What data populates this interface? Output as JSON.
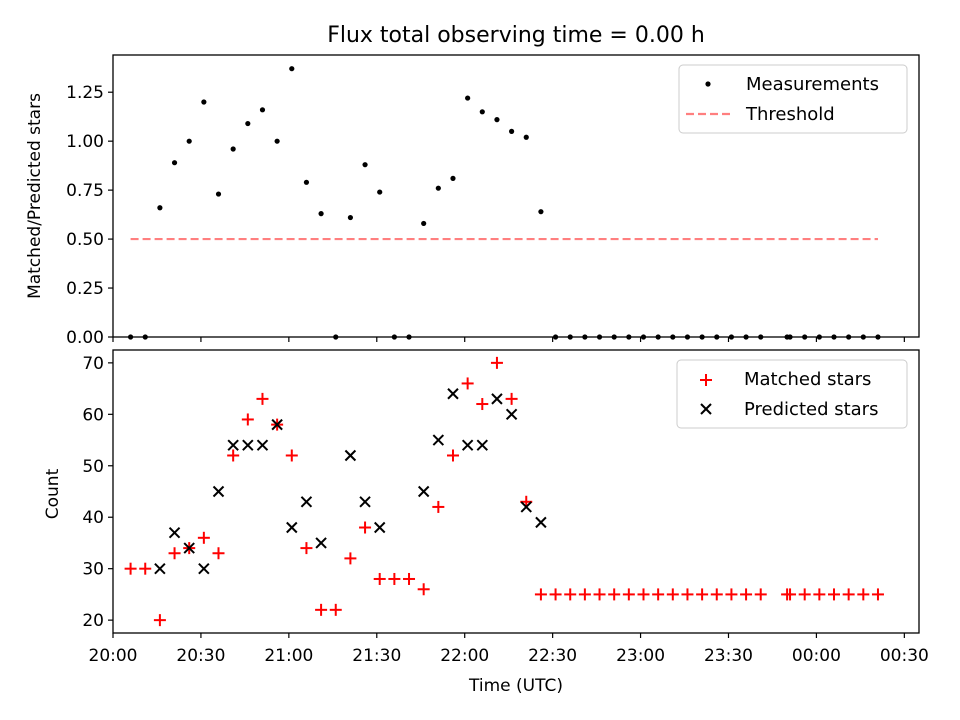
{
  "chart_data": [
    {
      "type": "scatter",
      "title": "Flux total observing time = 0.00 h",
      "ylabel": "Matched/Predicted stars",
      "xlabel": "",
      "xlim": [
        "20:00",
        "00:35"
      ],
      "ylim": [
        0,
        1.44
      ],
      "yticks": [
        "0.00",
        "0.25",
        "0.50",
        "0.75",
        "1.00",
        "1.25"
      ],
      "legend": [
        "Measurements",
        "Threshold"
      ],
      "legend_position": "upper right",
      "series": [
        {
          "name": "Measurements",
          "marker": "dot",
          "color": "#000000",
          "x": [
            "20:06",
            "20:11",
            "20:16",
            "20:21",
            "20:26",
            "20:31",
            "20:36",
            "20:41",
            "20:46",
            "20:51",
            "20:56",
            "21:01",
            "21:06",
            "21:11",
            "21:16",
            "21:21",
            "21:26",
            "21:31",
            "21:36",
            "21:41",
            "21:46",
            "21:51",
            "21:56",
            "22:01",
            "22:06",
            "22:11",
            "22:16",
            "22:21",
            "22:26",
            "22:31",
            "22:36",
            "22:41",
            "22:46",
            "22:51",
            "22:56",
            "23:01",
            "23:06",
            "23:11",
            "23:16",
            "23:21",
            "23:26",
            "23:31",
            "23:36",
            "23:41",
            "23:50",
            "23:51",
            "23:56",
            "00:01",
            "00:06",
            "00:11",
            "00:16",
            "00:21"
          ],
          "y": [
            0,
            0,
            0.66,
            0.89,
            1.0,
            1.2,
            0.73,
            0.96,
            1.09,
            1.16,
            1.0,
            1.37,
            0.79,
            0.63,
            0,
            0.61,
            0.88,
            0.74,
            0,
            0,
            0.58,
            0.76,
            0.81,
            1.22,
            1.15,
            1.11,
            1.05,
            1.02,
            0.64,
            0,
            0,
            0,
            0,
            0,
            0,
            0,
            0,
            0,
            0,
            0,
            0,
            0,
            0,
            0,
            0,
            0,
            0,
            0,
            0,
            0,
            0,
            0
          ]
        },
        {
          "name": "Threshold",
          "style": "dashed",
          "color": "#ff7f7f",
          "x": [
            "20:06",
            "00:21"
          ],
          "y": [
            0.5,
            0.5
          ]
        }
      ]
    },
    {
      "type": "scatter",
      "title": "",
      "ylabel": "Count",
      "xlabel": "Time (UTC)",
      "xlim": [
        "20:00",
        "00:35"
      ],
      "ylim": [
        17.5,
        72.5
      ],
      "xticks": [
        "20:00",
        "20:30",
        "21:00",
        "21:30",
        "22:00",
        "22:30",
        "23:00",
        "23:30",
        "00:00",
        "00:30"
      ],
      "yticks": [
        "20",
        "30",
        "40",
        "50",
        "60",
        "70"
      ],
      "legend": [
        "Matched stars",
        "Predicted stars"
      ],
      "legend_position": "upper right",
      "series": [
        {
          "name": "Matched stars",
          "marker": "plus",
          "color": "#ff0000",
          "x": [
            "20:06",
            "20:11",
            "20:16",
            "20:21",
            "20:26",
            "20:31",
            "20:36",
            "20:41",
            "20:46",
            "20:51",
            "20:56",
            "21:01",
            "21:06",
            "21:11",
            "21:16",
            "21:21",
            "21:26",
            "21:31",
            "21:36",
            "21:41",
            "21:46",
            "21:51",
            "21:56",
            "22:01",
            "22:06",
            "22:11",
            "22:16",
            "22:21",
            "22:26",
            "22:31",
            "22:36",
            "22:41",
            "22:46",
            "22:51",
            "22:56",
            "23:01",
            "23:06",
            "23:11",
            "23:16",
            "23:21",
            "23:26",
            "23:31",
            "23:36",
            "23:41",
            "23:50",
            "23:51",
            "23:56",
            "00:01",
            "00:06",
            "00:11",
            "00:16",
            "00:21"
          ],
          "y": [
            30,
            30,
            20,
            33,
            34,
            36,
            33,
            52,
            59,
            63,
            58,
            52,
            34,
            22,
            22,
            32,
            38,
            28,
            28,
            28,
            26,
            42,
            52,
            66,
            62,
            70,
            63,
            43,
            25,
            25,
            25,
            25,
            25,
            25,
            25,
            25,
            25,
            25,
            25,
            25,
            25,
            25,
            25,
            25,
            25,
            25,
            25,
            25,
            25,
            25,
            25,
            25
          ]
        },
        {
          "name": "Predicted stars",
          "marker": "x",
          "color": "#000000",
          "x": [
            "20:16",
            "20:21",
            "20:26",
            "20:31",
            "20:36",
            "20:41",
            "20:46",
            "20:51",
            "20:56",
            "21:01",
            "21:06",
            "21:11",
            "21:21",
            "21:26",
            "21:31",
            "21:46",
            "21:51",
            "21:56",
            "22:01",
            "22:06",
            "22:11",
            "22:16",
            "22:21",
            "22:26"
          ],
          "y": [
            30,
            37,
            34,
            30,
            45,
            54,
            54,
            54,
            58,
            38,
            43,
            35,
            52,
            43,
            38,
            45,
            55,
            64,
            54,
            54,
            63,
            60,
            42,
            39
          ]
        }
      ]
    }
  ]
}
